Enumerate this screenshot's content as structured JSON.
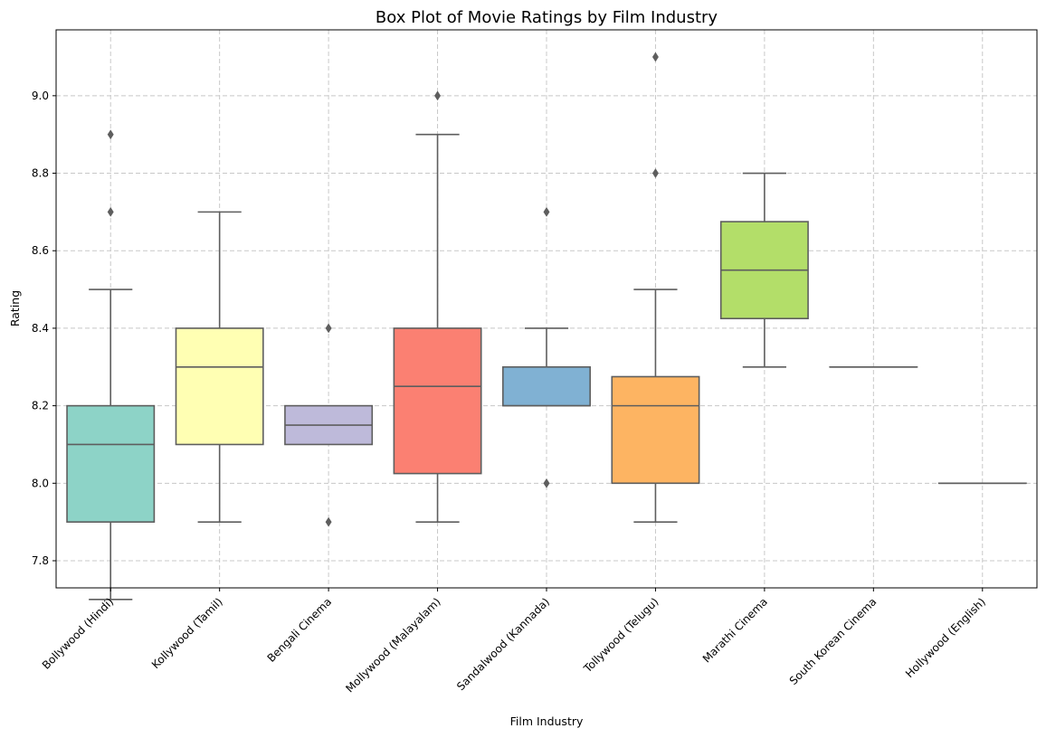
{
  "chart_data": {
    "type": "box",
    "title": "Box Plot of Movie Ratings by Film Industry",
    "xlabel": "Film Industry",
    "ylabel": "Rating",
    "ylim": [
      7.73,
      9.17
    ],
    "yticks": [
      7.8,
      8.0,
      8.2,
      8.4,
      8.6,
      8.8,
      9.0
    ],
    "grid": true,
    "categories": [
      {
        "name": "Bollywood (Hindi)",
        "color": "#8dd3c7",
        "whisker_low": 7.7,
        "q1": 7.9,
        "median": 8.1,
        "q3": 8.2,
        "whisker_high": 8.5,
        "outliers": [
          8.7,
          8.9
        ]
      },
      {
        "name": "Kollywood (Tamil)",
        "color": "#ffffb3",
        "whisker_low": 7.9,
        "q1": 8.1,
        "median": 8.3,
        "q3": 8.4,
        "whisker_high": 8.7,
        "outliers": []
      },
      {
        "name": "Bengali Cinema",
        "color": "#bebada",
        "whisker_low": 8.1,
        "q1": 8.1,
        "median": 8.15,
        "q3": 8.2,
        "whisker_high": 8.2,
        "outliers": [
          7.9,
          8.4
        ]
      },
      {
        "name": "Mollywood (Malayalam)",
        "color": "#fb8072",
        "whisker_low": 7.9,
        "q1": 8.025,
        "median": 8.25,
        "q3": 8.4,
        "whisker_high": 8.9,
        "outliers": [
          9.0
        ]
      },
      {
        "name": "Sandalwood (Kannada)",
        "color": "#80b1d3",
        "whisker_low": 8.2,
        "q1": 8.2,
        "median": 8.2,
        "q3": 8.3,
        "whisker_high": 8.4,
        "outliers": [
          8.0,
          8.7
        ]
      },
      {
        "name": "Tollywood (Telugu)",
        "color": "#fdb462",
        "whisker_low": 7.9,
        "q1": 8.0,
        "median": 8.2,
        "q3": 8.275,
        "whisker_high": 8.5,
        "outliers": [
          8.8,
          9.1
        ]
      },
      {
        "name": "Marathi Cinema",
        "color": "#b3de69",
        "whisker_low": 8.3,
        "q1": 8.425,
        "median": 8.55,
        "q3": 8.675,
        "whisker_high": 8.8,
        "outliers": []
      },
      {
        "name": "South Korean Cinema",
        "color": "#fccde5",
        "whisker_low": 8.3,
        "q1": 8.3,
        "median": 8.3,
        "q3": 8.3,
        "whisker_high": 8.3,
        "outliers": []
      },
      {
        "name": "Hollywood (English)",
        "color": "#d9d9d9",
        "whisker_low": 8.0,
        "q1": 8.0,
        "median": 8.0,
        "q3": 8.0,
        "whisker_high": 8.0,
        "outliers": []
      }
    ],
    "line_color": "#5e5e5e",
    "grid_color": "#c8c8c8"
  }
}
